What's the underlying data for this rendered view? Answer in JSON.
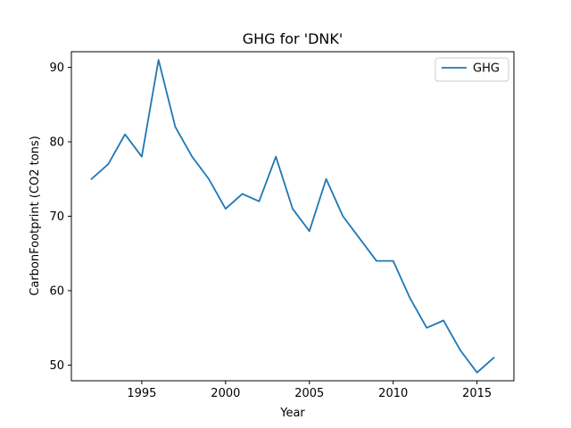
{
  "chart_data": {
    "type": "line",
    "title": "GHG for 'DNK'",
    "xlabel": "Year",
    "ylabel": "CarbonFootprint (CO2 tons)",
    "x": [
      1992,
      1993,
      1994,
      1995,
      1996,
      1997,
      1998,
      1999,
      2000,
      2001,
      2002,
      2003,
      2004,
      2005,
      2006,
      2007,
      2008,
      2009,
      2010,
      2011,
      2012,
      2013,
      2014,
      2015,
      2016
    ],
    "series": [
      {
        "name": "GHG",
        "color": "#1f77b4",
        "values": [
          75,
          77,
          81,
          78,
          91,
          82,
          78,
          75,
          71,
          73,
          72,
          78,
          71,
          68,
          75,
          70,
          67,
          64,
          64,
          59,
          55,
          56,
          52,
          49,
          51
        ]
      }
    ],
    "xlim": [
      1990.8,
      2017.2
    ],
    "ylim": [
      47.9,
      92.1
    ],
    "xticks": [
      1995,
      2000,
      2005,
      2010,
      2015
    ],
    "yticks": [
      50,
      60,
      70,
      80,
      90
    ],
    "grid": false,
    "legend_position": "top-right"
  }
}
